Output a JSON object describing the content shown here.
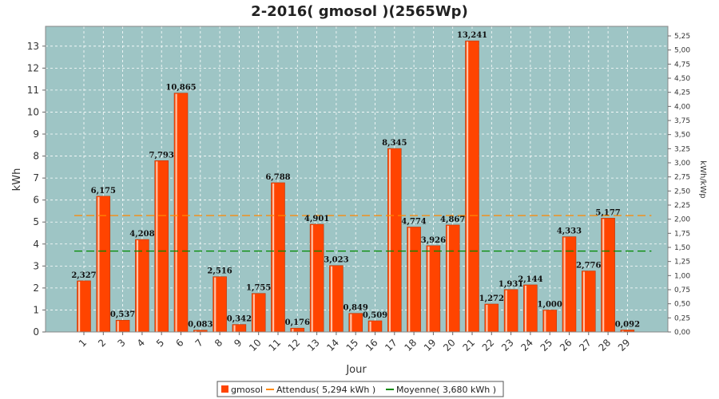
{
  "chart_data": {
    "type": "bar",
    "title": "2-2016( gmosol )(2565Wp)",
    "xlabel": "Jour",
    "ylabel": "kWh",
    "y2label": "kWh/kWp",
    "ylim": [
      0,
      13.9
    ],
    "y2lim": [
      0,
      5.42
    ],
    "yticks": [
      0,
      1,
      2,
      3,
      4,
      5,
      6,
      7,
      8,
      9,
      10,
      11,
      12,
      13
    ],
    "y2ticks": [
      "0,00",
      "0,25",
      "0,50",
      "0,75",
      "1,00",
      "1,25",
      "1,50",
      "1,75",
      "2,00",
      "2,25",
      "2,50",
      "2,75",
      "3,00",
      "3,25",
      "3,50",
      "3,75",
      "4,00",
      "4,25",
      "4,50",
      "4,75",
      "5,00",
      "5,25"
    ],
    "y2tick_values": [
      0,
      0.25,
      0.5,
      0.75,
      1.0,
      1.25,
      1.5,
      1.75,
      2.0,
      2.25,
      2.5,
      2.75,
      3.0,
      3.25,
      3.5,
      3.75,
      4.0,
      4.25,
      4.5,
      4.75,
      5.0,
      5.25
    ],
    "categories": [
      "1",
      "2",
      "3",
      "4",
      "5",
      "6",
      "7",
      "8",
      "9",
      "10",
      "11",
      "12",
      "13",
      "14",
      "15",
      "16",
      "17",
      "18",
      "19",
      "20",
      "21",
      "22",
      "23",
      "24",
      "25",
      "26",
      "27",
      "28",
      "29"
    ],
    "series": [
      {
        "name": "gmosol",
        "color": "#ff4400",
        "values": [
          2.327,
          6.175,
          0.537,
          4.208,
          7.793,
          10.865,
          0.083,
          2.516,
          0.342,
          1.755,
          6.788,
          0.176,
          4.901,
          3.023,
          0.849,
          0.509,
          8.345,
          4.774,
          3.926,
          4.867,
          13.241,
          1.272,
          1.931,
          2.144,
          1.0,
          4.333,
          2.776,
          5.177,
          0.092
        ],
        "labels": [
          "2,327",
          "6,175",
          "0,537",
          "4,208",
          "7,793",
          "10,865",
          "0,083",
          "2,516",
          "0,342",
          "1,755",
          "6,788",
          "0,176",
          "4,901",
          "3,023",
          "0,849",
          "0,509",
          "8,345",
          "4,774",
          "3,926",
          "4,867",
          "13,241",
          "1,272",
          "1,931",
          "2,144",
          "1,000",
          "4,333",
          "2,776",
          "5,177",
          "0,092"
        ]
      }
    ],
    "reference_lines": [
      {
        "name": "Attendus( 5,294 kWh )",
        "value": 5.294,
        "color": "#ff8800"
      },
      {
        "name": "Moyenne( 3,680 kWh )",
        "value": 3.68,
        "color": "#008800"
      }
    ],
    "legend": {
      "position": "bottom",
      "entries": [
        "gmosol",
        "Attendus( 5,294 kWh )",
        "Moyenne( 3,680 kWh )"
      ]
    },
    "grid": true,
    "colors": {
      "plot_background": "#9ec5c5",
      "grid": "#ffffff",
      "bar": "#ff4400"
    }
  }
}
